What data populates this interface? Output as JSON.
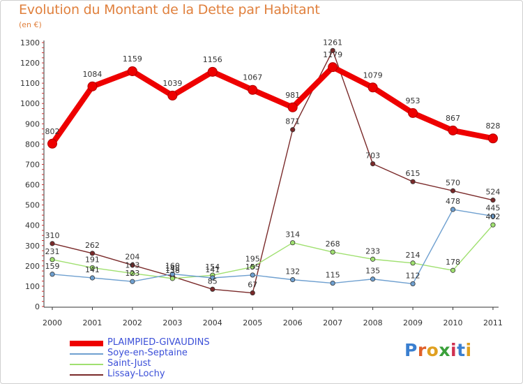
{
  "header": {
    "title": "Evolution du Montant de la Dette par Habitant",
    "subtitle": "(en €)"
  },
  "logo": {
    "text": "Proxiti"
  },
  "chart_data": {
    "type": "line",
    "x": [
      "2000",
      "2001",
      "2002",
      "2003",
      "2004",
      "2005",
      "2006",
      "2007",
      "2008",
      "2009",
      "2010",
      "2011"
    ],
    "ylim": [
      0,
      1300
    ],
    "yticks": [
      0,
      100,
      200,
      300,
      400,
      500,
      600,
      700,
      800,
      900,
      1000,
      1100,
      1200,
      1300
    ],
    "grid": false,
    "legend_position": "bottom-left",
    "series": [
      {
        "name": "PLAIMPIED-GIVAUDINS",
        "color": "#ee0000",
        "values": [
          802,
          1084,
          1159,
          1039,
          1156,
          1067,
          981,
          1179,
          1079,
          953,
          867,
          828
        ]
      },
      {
        "name": "Soye-en-Septaine",
        "color": "#6fa0d0",
        "values": [
          159,
          141,
          123,
          160,
          141,
          155,
          132,
          115,
          135,
          112,
          478,
          445
        ]
      },
      {
        "name": "Saint-Just",
        "color": "#a0e070",
        "values": [
          231,
          191,
          163,
          138,
          154,
          195,
          314,
          268,
          233,
          214,
          178,
          402
        ]
      },
      {
        "name": "Lissay-Lochy",
        "color": "#7a2a2a",
        "values": [
          310,
          262,
          204,
          148,
          85,
          67,
          871,
          1261,
          703,
          615,
          570,
          524
        ]
      }
    ]
  }
}
